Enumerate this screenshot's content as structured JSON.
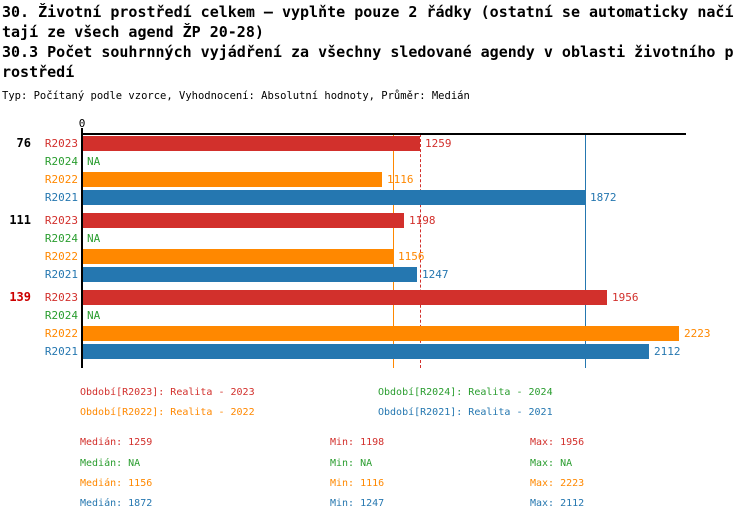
{
  "header": {
    "lines": [
      "30. Životní prostředí celkem – vyplňte pouze 2 řádky (ostatní se automaticky načí",
      "tají ze všech agend ŽP 20-28)",
      "30.3 Počet souhrnných vyjádření za všechny sledované agendy v oblasti životního p",
      "rostředí"
    ],
    "subtitle": "Typ: Počítaný podle vzorce, Vyhodnocení: Absolutní hodnoty, Průměr: Medián"
  },
  "colors": {
    "red": "#d2302c",
    "green": "#2a9d2f",
    "orange": "#ff8800",
    "blue": "#2577b0",
    "highlight_red": "#cc0000",
    "axis_black": "#000000"
  },
  "chart_data": {
    "type": "bar",
    "orientation": "horizontal",
    "title": "",
    "xlabel": "",
    "ylabel": "",
    "axis": {
      "origin_label": "0",
      "xmin": 0,
      "xmax": 2250,
      "grid": "median-lines-only"
    },
    "series_labels": [
      "R2023",
      "R2024",
      "R2022",
      "R2021"
    ],
    "series_colors": [
      "#d2302c",
      "#2a9d2f",
      "#ff8800",
      "#2577b0"
    ],
    "na_text": "NA",
    "groups": [
      {
        "label": "76",
        "label_color": "#000000",
        "values": [
          1259,
          null,
          1116,
          1872
        ],
        "display": [
          "1259",
          "NA",
          "1116",
          "1872"
        ]
      },
      {
        "label": "111",
        "label_color": "#000000",
        "values": [
          1198,
          null,
          1156,
          1247
        ],
        "display": [
          "1198",
          "NA",
          "1156",
          "1247"
        ]
      },
      {
        "label": "139",
        "label_color": "#cc0000",
        "values": [
          1956,
          null,
          2223,
          2112
        ],
        "display": [
          "1956",
          "NA",
          "2223",
          "2112"
        ]
      }
    ],
    "median_lines": [
      {
        "series": "R2023",
        "value": 1259,
        "color": "#d2302c",
        "style": "dashed"
      },
      {
        "series": "R2022",
        "value": 1156,
        "color": "#ff8800",
        "style": "solid"
      },
      {
        "series": "R2021",
        "value": 1872,
        "color": "#2577b0",
        "style": "solid"
      }
    ]
  },
  "legend": {
    "items": [
      {
        "label": "Období[R2023]: Realita - 2023",
        "color": "#d2302c"
      },
      {
        "label": "Období[R2024]: Realita - 2024",
        "color": "#2a9d2f"
      },
      {
        "label": "Období[R2022]: Realita - 2022",
        "color": "#ff8800"
      },
      {
        "label": "Období[R2021]: Realita - 2021",
        "color": "#2577b0"
      }
    ]
  },
  "stats": {
    "rows": [
      {
        "color": "#d2302c",
        "median": "Medián: 1259",
        "min": "Min: 1198",
        "max": "Max: 1956"
      },
      {
        "color": "#2a9d2f",
        "median": "Medián: NA",
        "min": "Min: NA",
        "max": "Max: NA"
      },
      {
        "color": "#ff8800",
        "median": "Medián: 1156",
        "min": "Min: 1116",
        "max": "Max: 2223"
      },
      {
        "color": "#2577b0",
        "median": "Medián: 1872",
        "min": "Min: 1247",
        "max": "Max: 2112"
      }
    ]
  }
}
